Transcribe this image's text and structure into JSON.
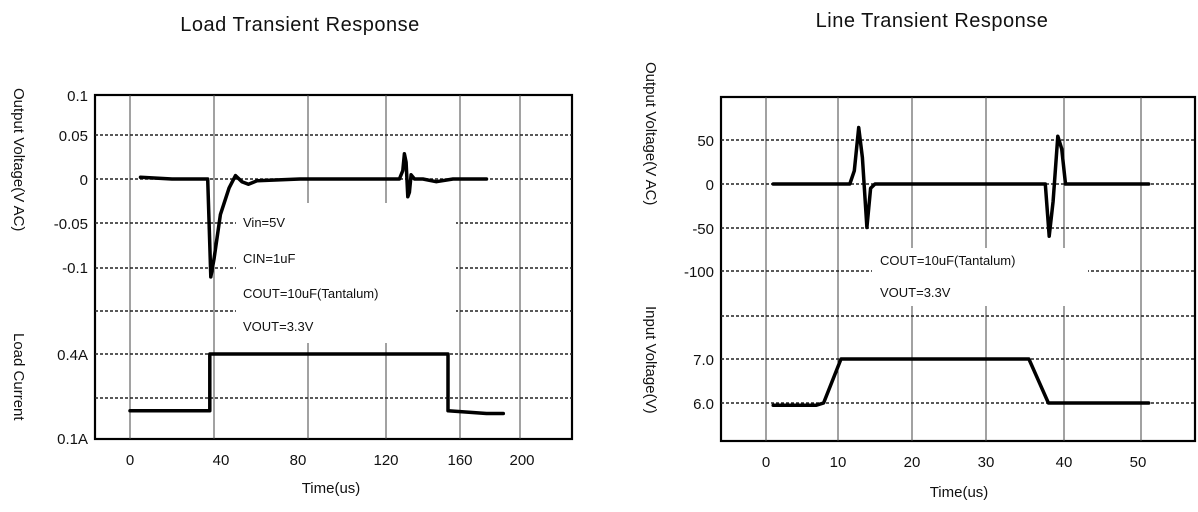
{
  "chart_data": [
    {
      "type": "line",
      "title": "Load Transient Response",
      "xlabel": "Time(us)",
      "ylabel_top": "Output Voltage(V AC)",
      "ylabel_bottom": "Load Current",
      "x_ticks": [
        "0",
        "40",
        "80",
        "120",
        "160",
        "200"
      ],
      "y_ticks_top": [
        "0.1",
        "0.05",
        "0",
        "-0.05",
        "-0.1"
      ],
      "y_ticks_bottom": [
        "0.4A",
        "0.1A"
      ],
      "xlim": [
        -20,
        220
      ],
      "annotations": [
        "Vin=5V",
        "CIN=1uF",
        "COUT=10uF(Tantalum)",
        "VOUT=3.3V"
      ],
      "series": [
        {
          "panel": "top",
          "x": [
            5,
            20,
            37,
            38.5,
            40,
            43,
            47,
            50,
            53,
            56,
            60,
            80,
            128,
            130,
            131,
            132,
            133,
            134,
            135,
            137,
            142,
            150,
            160,
            180
          ],
          "values": [
            0.002,
            0.0,
            0.0,
            -0.11,
            -0.09,
            -0.04,
            -0.01,
            0.004,
            -0.003,
            -0.006,
            -0.002,
            0.0,
            0.0,
            0.01,
            0.03,
            0.02,
            -0.02,
            -0.015,
            0.005,
            0.0,
            0.0,
            -0.003,
            0.0,
            0.0
          ]
        },
        {
          "panel": "bottom",
          "x": [
            0,
            38,
            38,
            157,
            157,
            180,
            190
          ],
          "values": [
            0.2,
            0.2,
            0.4,
            0.4,
            0.2,
            0.19,
            0.19
          ]
        }
      ]
    },
    {
      "type": "line",
      "title": "Line Transient Response",
      "xlabel": "Time(us)",
      "ylabel_top": "Output Voltage(V AC)",
      "ylabel_bottom": "Input Voltage(V)",
      "x_ticks": [
        "0",
        "10",
        "20",
        "30",
        "40",
        "50"
      ],
      "y_ticks_top": [
        "50",
        "0",
        "-50",
        "-100"
      ],
      "y_ticks_bottom": [
        "7.0",
        "6.0"
      ],
      "xlim": [
        -5,
        55
      ],
      "annotations": [
        "COUT=10uF(Tantalum)",
        "VOUT=3.3V"
      ],
      "series": [
        {
          "panel": "top",
          "x": [
            1,
            11.6,
            12.2,
            12.8,
            13.3,
            13.9,
            14.4,
            15,
            37.6,
            38.1,
            38.6,
            39.2,
            39.7,
            40.2,
            51
          ],
          "values": [
            0,
            0,
            15,
            65,
            30,
            -50,
            -5,
            0,
            0,
            -60,
            -20,
            55,
            40,
            0,
            0
          ]
        },
        {
          "panel": "bottom",
          "x": [
            1,
            7,
            8,
            10.4,
            35.5,
            38,
            51
          ],
          "values": [
            5.95,
            5.95,
            6.0,
            7.0,
            7.0,
            6.0,
            6.0
          ]
        }
      ]
    }
  ]
}
